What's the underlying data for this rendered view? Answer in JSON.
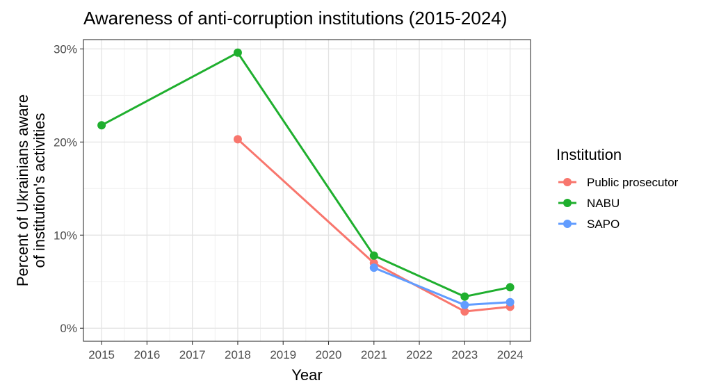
{
  "chart_data": {
    "type": "line",
    "title": "Awareness of anti-corruption institutions (2015-2024)",
    "xlabel": "Year",
    "ylabel": [
      "Percent of Ukrainians aware",
      "of institution's activities"
    ],
    "x_ticks": [
      2015,
      2016,
      2017,
      2018,
      2019,
      2020,
      2021,
      2022,
      2023,
      2024
    ],
    "xlim": [
      2014.6,
      2024.45
    ],
    "y_ticks": [
      {
        "value": 0,
        "label": "0%"
      },
      {
        "value": 10,
        "label": "10%"
      },
      {
        "value": 20,
        "label": "20%"
      },
      {
        "value": 30,
        "label": "30%"
      }
    ],
    "ylim": [
      -1.4,
      31.0
    ],
    "grid": true,
    "legend_title": "Institution",
    "legend_position": "right",
    "series": [
      {
        "name": "Public prosecutor",
        "color": "#F8766D",
        "points": [
          {
            "x": 2018,
            "y": 20.3
          },
          {
            "x": 2021,
            "y": 7.0
          },
          {
            "x": 2023,
            "y": 1.8
          },
          {
            "x": 2024,
            "y": 2.3
          }
        ]
      },
      {
        "name": "NABU",
        "color": "#1FAF2E",
        "points": [
          {
            "x": 2015,
            "y": 21.8
          },
          {
            "x": 2018,
            "y": 29.6
          },
          {
            "x": 2021,
            "y": 7.8
          },
          {
            "x": 2023,
            "y": 3.4
          },
          {
            "x": 2024,
            "y": 4.4
          }
        ]
      },
      {
        "name": "SAPO",
        "color": "#619CFF",
        "points": [
          {
            "x": 2021,
            "y": 6.5
          },
          {
            "x": 2023,
            "y": 2.5
          },
          {
            "x": 2024,
            "y": 2.8
          }
        ]
      }
    ]
  }
}
